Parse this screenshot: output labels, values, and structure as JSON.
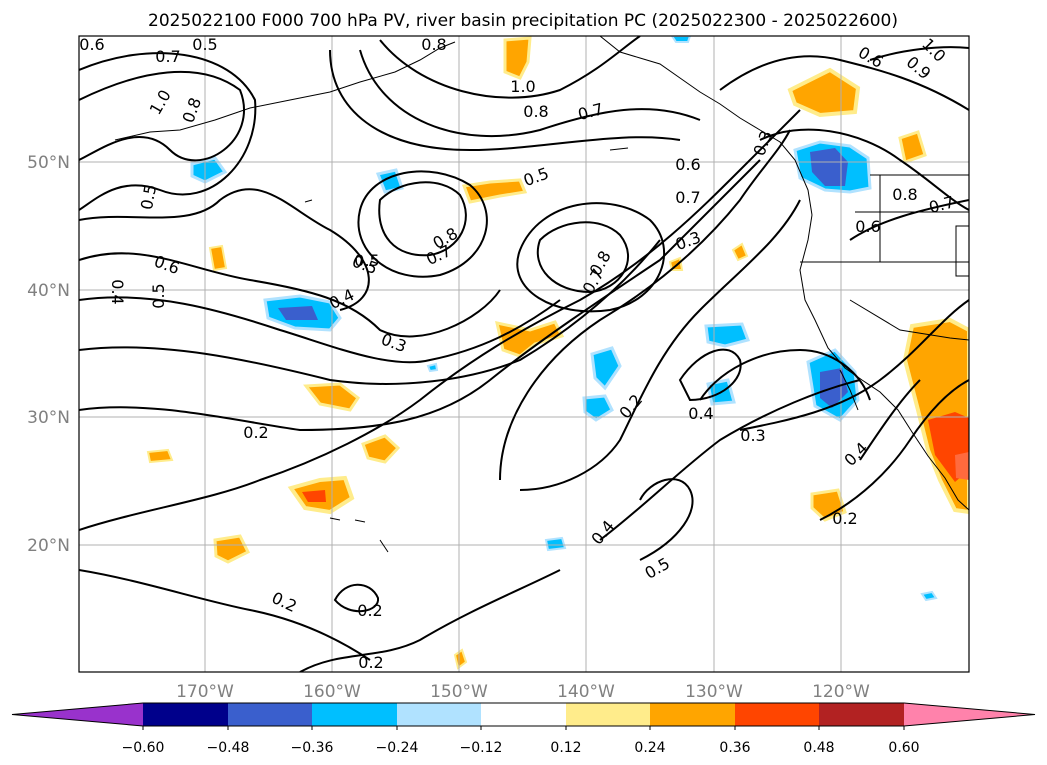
{
  "title": "2025022100 F000 700 hPa PV, river basin precipitation PC (2025022300 - 2025022600)",
  "lon_labels": [
    "170°W",
    "160°W",
    "150°W",
    "140°W",
    "130°W",
    "120°W"
  ],
  "lat_labels": [
    "50°N",
    "40°N",
    "30°N",
    "20°N"
  ],
  "colorbar": {
    "ticks": [
      "−0.60",
      "−0.48",
      "−0.36",
      "−0.24",
      "−0.12",
      "0.12",
      "0.24",
      "0.36",
      "0.48",
      "0.60"
    ],
    "colors": [
      "#9932cc",
      "#00008b",
      "#3a5fcd",
      "#00bfff",
      "#b0e2ff",
      "#ffffff",
      "#ffec8b",
      "#ffa500",
      "#ff4500",
      "#b22222",
      "#ff82ab"
    ]
  },
  "contour_labels": [
    "0.6",
    "0.5",
    "0.7",
    "1.0",
    "0.8",
    "0.8",
    "0.5",
    "0.6",
    "0.5",
    "0.4",
    "1.0",
    "0.8",
    "0.7",
    "0.5",
    "0.6",
    "0.7",
    "0.3",
    "0.5",
    "0.8",
    "0.7",
    "0.5",
    "0.4",
    "0.3",
    "0.8",
    "0.7",
    "0.3",
    "0.2",
    "0.4",
    "0.3",
    "0.2",
    "0.4",
    "0.5",
    "0.2",
    "0.2",
    "0.2",
    "0.6",
    "0.9",
    "1.0",
    "0.6",
    "0.8",
    "0.7",
    "0.4",
    "0.2"
  ]
}
